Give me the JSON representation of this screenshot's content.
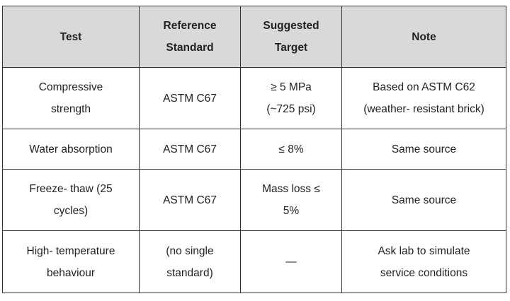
{
  "table": {
    "header": [
      [
        "Test"
      ],
      [
        "Reference",
        "Standard"
      ],
      [
        "Suggested",
        "Target"
      ],
      [
        "Note"
      ]
    ],
    "rows": [
      [
        [
          "Compressive",
          "strength"
        ],
        [
          "ASTM C67"
        ],
        [
          "≥ 5 MPa",
          "(~725 psi)"
        ],
        [
          "Based on ASTM C62",
          "(weather- resistant brick)"
        ]
      ],
      [
        [
          "Water absorption"
        ],
        [
          "ASTM C67"
        ],
        [
          "≤ 8%"
        ],
        [
          "Same source"
        ]
      ],
      [
        [
          "Freeze- thaw (25",
          "cycles)"
        ],
        [
          "ASTM C67"
        ],
        [
          "Mass loss ≤",
          "5%"
        ],
        [
          "Same source"
        ]
      ],
      [
        [
          "High- temperature",
          "behaviour"
        ],
        [
          "(no single",
          "standard)"
        ],
        [
          "—"
        ],
        [
          "Ask lab to simulate",
          "service conditions"
        ]
      ]
    ]
  }
}
